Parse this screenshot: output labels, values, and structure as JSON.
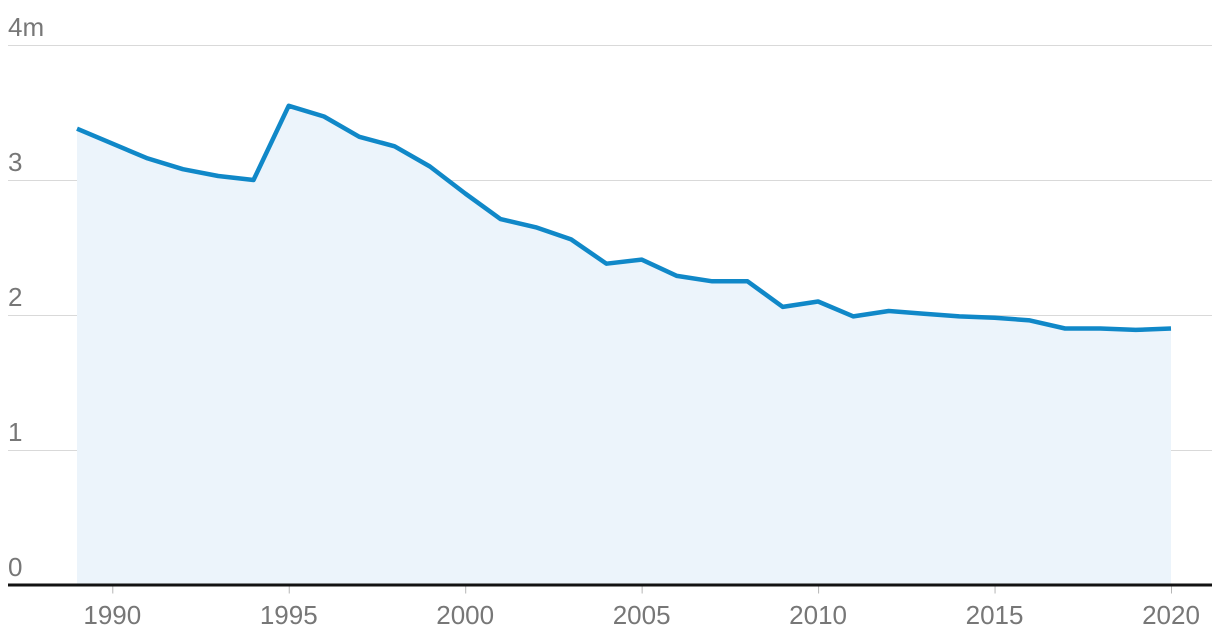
{
  "chart": {
    "line_color": "#1088c8",
    "fill_color": "#ecf4fb",
    "gridline_color": "#d9d9d9",
    "axis_color": "#121212",
    "tick_color": "#b5b5b5",
    "label_color": "#777777"
  },
  "chart_data": {
    "type": "area",
    "title": "",
    "xlabel": "",
    "ylabel": "",
    "legend": "none",
    "grid": "horizontal",
    "xlim": [
      1989,
      2020
    ],
    "ylim": [
      0,
      4
    ],
    "x": [
      1989,
      1990,
      1991,
      1992,
      1993,
      1994,
      1995,
      1996,
      1997,
      1998,
      1999,
      2000,
      2001,
      2002,
      2003,
      2004,
      2005,
      2006,
      2007,
      2008,
      2009,
      2010,
      2011,
      2012,
      2013,
      2014,
      2015,
      2016,
      2017,
      2018,
      2019,
      2020
    ],
    "values": [
      3.38,
      3.27,
      3.16,
      3.08,
      3.03,
      3.0,
      3.55,
      3.47,
      3.32,
      3.25,
      3.1,
      2.9,
      2.71,
      2.65,
      2.56,
      2.38,
      2.41,
      2.29,
      2.25,
      2.25,
      2.06,
      2.1,
      1.99,
      2.03,
      2.01,
      1.99,
      1.98,
      1.96,
      1.9,
      1.9,
      1.89,
      1.9
    ],
    "y_ticks": [
      {
        "value": 0,
        "label": "0"
      },
      {
        "value": 1,
        "label": "1"
      },
      {
        "value": 2,
        "label": "2"
      },
      {
        "value": 3,
        "label": "3"
      },
      {
        "value": 4,
        "label": "4m"
      }
    ],
    "x_ticks": [
      {
        "value": 1990,
        "label": "1990"
      },
      {
        "value": 1995,
        "label": "1995"
      },
      {
        "value": 2000,
        "label": "2000"
      },
      {
        "value": 2005,
        "label": "2005"
      },
      {
        "value": 2010,
        "label": "2010"
      },
      {
        "value": 2015,
        "label": "2015"
      },
      {
        "value": 2020,
        "label": "2020"
      }
    ]
  }
}
